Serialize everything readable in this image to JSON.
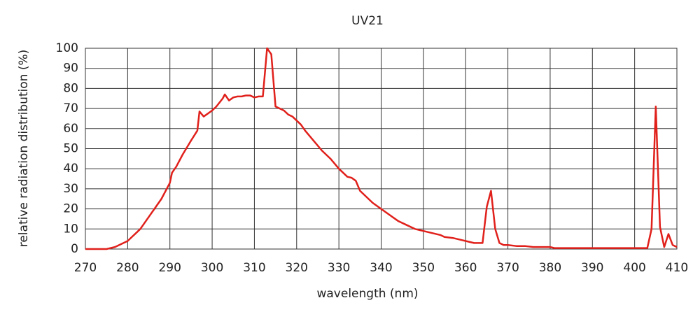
{
  "chart_data": {
    "type": "line",
    "title": "UV21",
    "x_label": "wavelength (nm)",
    "y_label": "relative radiation distribution (%)",
    "xlim": [
      270,
      410
    ],
    "xticks": [
      270,
      280,
      290,
      300,
      310,
      320,
      330,
      340,
      350,
      360,
      370,
      380,
      390,
      400,
      410
    ],
    "ylim": [
      0,
      100
    ],
    "yticks": [
      0,
      10,
      20,
      30,
      40,
      50,
      60,
      70,
      80,
      90,
      100
    ],
    "grid": true,
    "series": [
      {
        "color": "#e0201b",
        "x": [
          270,
          275,
          277,
          278,
          280,
          281,
          282,
          283,
          285,
          287,
          288,
          289,
          290,
          290.5,
          291.5,
          293,
          295,
          296.5,
          297,
          298,
          300,
          301,
          302.5,
          303,
          304,
          305,
          306,
          307,
          308,
          309,
          310,
          311,
          312,
          313,
          314,
          315,
          316,
          317,
          318,
          319,
          320,
          321,
          322,
          324,
          326,
          328,
          330,
          332,
          333,
          334,
          335,
          336,
          338,
          340,
          342,
          344,
          346,
          348,
          350,
          352,
          354,
          355,
          357,
          359,
          360,
          362,
          364,
          365,
          366,
          367,
          368,
          369,
          370,
          372,
          374,
          376,
          378,
          380,
          381,
          385,
          390,
          395,
          400,
          403,
          404,
          405,
          406,
          407,
          408,
          409,
          410
        ],
        "values": [
          0,
          0,
          1,
          2,
          4,
          6,
          8,
          10,
          16,
          22,
          25,
          29,
          33,
          38,
          41,
          47,
          54,
          59,
          68.5,
          66,
          69,
          71,
          75,
          77,
          74,
          75.5,
          76,
          76,
          76.5,
          76.5,
          75.5,
          76,
          76,
          100,
          97,
          71,
          70,
          69,
          67,
          66,
          64,
          62,
          59,
          54,
          49,
          45,
          40,
          36,
          35.5,
          34,
          29,
          27,
          23,
          20,
          17,
          14,
          12,
          10,
          9,
          8,
          7,
          6,
          5.5,
          4.5,
          4,
          3,
          3,
          21,
          29,
          10,
          3,
          2,
          2,
          1.5,
          1.5,
          1,
          1,
          1,
          0.5,
          0.5,
          0.5,
          0.5,
          0.5,
          0.5,
          10,
          71,
          11,
          1,
          7.5,
          2,
          1
        ]
      }
    ]
  }
}
